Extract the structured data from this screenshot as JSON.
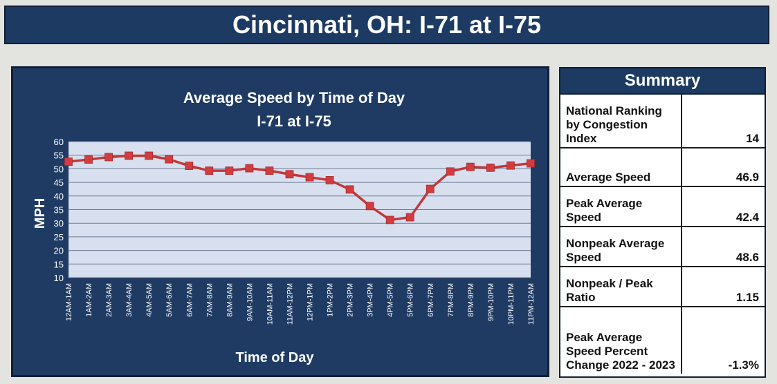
{
  "header": {
    "title": "Cincinnati, OH: I-71 at I-75"
  },
  "chart_data": {
    "type": "line",
    "title": "Average Speed by Time of Day",
    "subtitle": "I-71 at I-75",
    "xlabel": "Time of Day",
    "ylabel": "MPH",
    "ylim": [
      10,
      60
    ],
    "yticks": [
      10,
      15,
      20,
      25,
      30,
      35,
      40,
      45,
      50,
      55,
      60
    ],
    "grid": true,
    "categories": [
      "12AM-1AM",
      "1AM-2AM",
      "2AM-3AM",
      "3AM-4AM",
      "4AM-5AM",
      "5AM-6AM",
      "6AM-7AM",
      "7AM-8AM",
      "8AM-9AM",
      "9AM-10AM",
      "10AM-11AM",
      "11AM-12PM",
      "12PM-1PM",
      "1PM-2PM",
      "2PM-3PM",
      "3PM-4PM",
      "4PM-5PM",
      "5PM-6PM",
      "6PM-7PM",
      "7PM-8PM",
      "8PM-9PM",
      "9PM-10PM",
      "10PM-11PM",
      "11PM-12AM"
    ],
    "series": [
      {
        "values": [
          52.6,
          53.4,
          54.3,
          54.8,
          54.8,
          53.5,
          51.1,
          49.3,
          49.3,
          50.2,
          49.3,
          48.0,
          46.9,
          45.8,
          42.4,
          36.3,
          31.2,
          32.2,
          42.6,
          49.0,
          50.7,
          50.4,
          51.2,
          52.0
        ]
      }
    ],
    "colors": {
      "line": "#c0393b",
      "marker": "#d23c3e",
      "plot_bg": "#d8e0f0",
      "panel_bg": "#1f3b64"
    }
  },
  "summary": {
    "title": "Summary",
    "rows": [
      {
        "label": "National Ranking by Congestion Index",
        "value": "14"
      },
      {
        "label": "Average Speed",
        "value": "46.9"
      },
      {
        "label": "Peak Average Speed",
        "value": "42.4"
      },
      {
        "label": "Nonpeak Average Speed",
        "value": "48.6"
      },
      {
        "label": "Nonpeak / Peak Ratio",
        "value": "1.15"
      },
      {
        "label": "Peak Average Speed Percent Change 2022 - 2023",
        "value": "-1.3%"
      }
    ]
  }
}
